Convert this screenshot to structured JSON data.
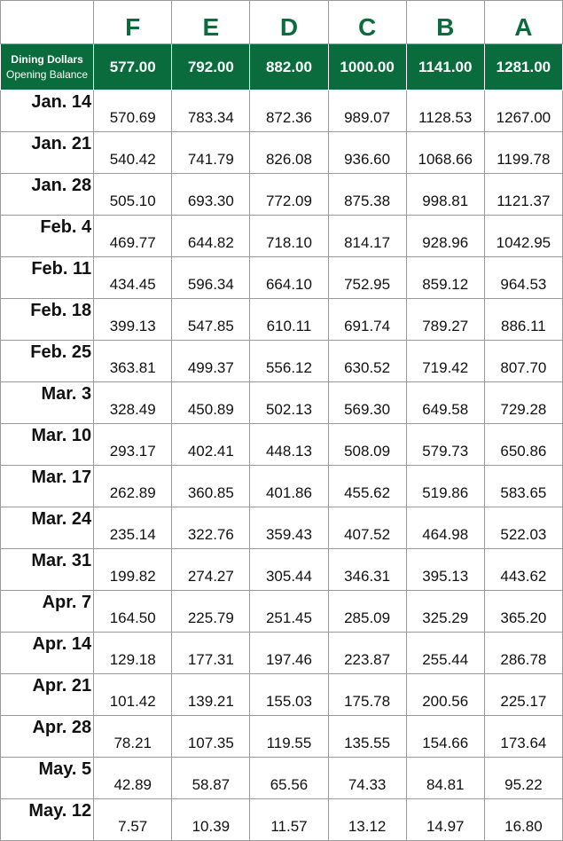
{
  "plans": [
    "F",
    "E",
    "D",
    "C",
    "B",
    "A"
  ],
  "opening": {
    "label_line1": "Dining Dollars",
    "label_line2": "Opening Balance",
    "values": [
      "577.00",
      "792.00",
      "882.00",
      "1000.00",
      "1141.00",
      "1281.00"
    ]
  },
  "weeks": [
    {
      "date": "Jan. 14",
      "values": [
        "570.69",
        "783.34",
        "872.36",
        "989.07",
        "1128.53",
        "1267.00"
      ]
    },
    {
      "date": "Jan. 21",
      "values": [
        "540.42",
        "741.79",
        "826.08",
        "936.60",
        "1068.66",
        "1199.78"
      ]
    },
    {
      "date": "Jan. 28",
      "values": [
        "505.10",
        "693.30",
        "772.09",
        "875.38",
        "998.81",
        "1121.37"
      ]
    },
    {
      "date": "Feb. 4",
      "values": [
        "469.77",
        "644.82",
        "718.10",
        "814.17",
        "928.96",
        "1042.95"
      ]
    },
    {
      "date": "Feb. 11",
      "values": [
        "434.45",
        "596.34",
        "664.10",
        "752.95",
        "859.12",
        "964.53"
      ]
    },
    {
      "date": "Feb. 18",
      "values": [
        "399.13",
        "547.85",
        "610.11",
        "691.74",
        "789.27",
        "886.11"
      ]
    },
    {
      "date": "Feb. 25",
      "values": [
        "363.81",
        "499.37",
        "556.12",
        "630.52",
        "719.42",
        "807.70"
      ]
    },
    {
      "date": "Mar. 3",
      "values": [
        "328.49",
        "450.89",
        "502.13",
        "569.30",
        "649.58",
        "729.28"
      ]
    },
    {
      "date": "Mar. 10",
      "values": [
        "293.17",
        "402.41",
        "448.13",
        "508.09",
        "579.73",
        "650.86"
      ]
    },
    {
      "date": "Mar. 17",
      "values": [
        "262.89",
        "360.85",
        "401.86",
        "455.62",
        "519.86",
        "583.65"
      ]
    },
    {
      "date": "Mar. 24",
      "values": [
        "235.14",
        "322.76",
        "359.43",
        "407.52",
        "464.98",
        "522.03"
      ]
    },
    {
      "date": "Mar. 31",
      "values": [
        "199.82",
        "274.27",
        "305.44",
        "346.31",
        "395.13",
        "443.62"
      ]
    },
    {
      "date": "Apr. 7",
      "values": [
        "164.50",
        "225.79",
        "251.45",
        "285.09",
        "325.29",
        "365.20"
      ]
    },
    {
      "date": "Apr. 14",
      "values": [
        "129.18",
        "177.31",
        "197.46",
        "223.87",
        "255.44",
        "286.78"
      ]
    },
    {
      "date": "Apr. 21",
      "values": [
        "101.42",
        "139.21",
        "155.03",
        "175.78",
        "200.56",
        "225.17"
      ]
    },
    {
      "date": "Apr. 28",
      "values": [
        "78.21",
        "107.35",
        "119.55",
        "135.55",
        "154.66",
        "173.64"
      ]
    },
    {
      "date": "May. 5",
      "values": [
        "42.89",
        "58.87",
        "65.56",
        "74.33",
        "84.81",
        "95.22"
      ]
    },
    {
      "date": "May. 12",
      "values": [
        "7.57",
        "10.39",
        "11.57",
        "13.12",
        "14.97",
        "16.80"
      ]
    }
  ],
  "colors": {
    "header_green": "#0a6b3c",
    "text": "#111111",
    "grid": "#9a9a9a"
  }
}
